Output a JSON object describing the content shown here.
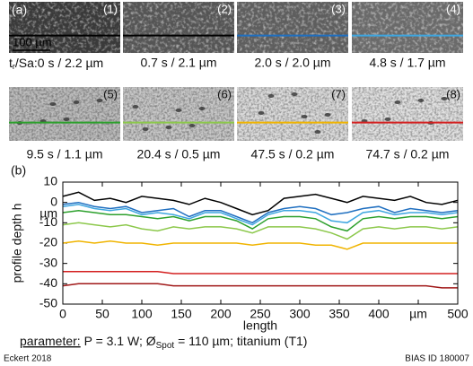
{
  "panel_label": "(a)",
  "scale_bar": "100 µm",
  "caption_key": {
    "text": "t",
    "sub": "r",
    "after": "/Sa:"
  },
  "panels": [
    {
      "number": "(1)",
      "caption": "0 s / 2.2 µm"
    },
    {
      "number": "(2)",
      "caption": "0.7 s / 2.1 µm"
    },
    {
      "number": "(3)",
      "caption": "2.0 s / 2.0 µm"
    },
    {
      "number": "(4)",
      "caption": "4.8 s / 1.7 µm"
    },
    {
      "number": "(5)",
      "caption": "9.5 s / 1.1 µm"
    },
    {
      "number": "(6)",
      "caption": "20.4 s / 0.5 µm"
    },
    {
      "number": "(7)",
      "caption": "47.5 s / 0.2 µm"
    },
    {
      "number": "(8)",
      "caption": "74.7 s / 0.2 µm"
    }
  ],
  "chart_data": {
    "type": "line",
    "panel_label": "(b)",
    "x_label": "length",
    "y_label": "profile depth h",
    "y_unit": "µm",
    "x": [
      0,
      20,
      40,
      60,
      80,
      100,
      120,
      140,
      160,
      180,
      200,
      220,
      240,
      260,
      280,
      300,
      320,
      340,
      360,
      380,
      400,
      420,
      440,
      460,
      480,
      500
    ],
    "xlim": [
      0,
      500
    ],
    "ylim": [
      -50,
      10
    ],
    "xticks": [
      0,
      50,
      100,
      150,
      200,
      250,
      300,
      350,
      400,
      {
        "value": 450,
        "label": "µm"
      },
      500
    ],
    "yticks": [
      10,
      0,
      -10,
      -20,
      -30,
      -40,
      -50
    ],
    "series": [
      {
        "color": "#000000",
        "values": [
          3,
          5,
          1,
          2,
          0,
          3,
          2,
          1,
          -1,
          2,
          0,
          -3,
          -6,
          -4,
          2,
          3,
          4,
          2,
          0,
          3,
          2,
          1,
          3,
          0,
          -1,
          1
        ]
      },
      {
        "color": "#1f6fc0",
        "values": [
          -1,
          0,
          -2,
          -3,
          -2,
          -5,
          -4,
          -3,
          -7,
          -4,
          -4,
          -7,
          -10,
          -5,
          -3,
          -2,
          -3,
          -6,
          -5,
          -3,
          -2,
          -5,
          -3,
          -4,
          -5,
          -4
        ]
      },
      {
        "color": "#3ea6e0",
        "values": [
          -2,
          -1,
          -3,
          -4,
          -3,
          -6,
          -5,
          -6,
          -8,
          -5,
          -5,
          -8,
          -11,
          -6,
          -4,
          -4,
          -5,
          -9,
          -10,
          -5,
          -4,
          -6,
          -5,
          -5,
          -6,
          -5
        ]
      },
      {
        "color": "#2ca02c",
        "values": [
          -5,
          -4,
          -5,
          -6,
          -6,
          -7,
          -8,
          -7,
          -9,
          -7,
          -7,
          -9,
          -13,
          -8,
          -7,
          -7,
          -8,
          -12,
          -14,
          -8,
          -7,
          -8,
          -7,
          -7,
          -8,
          -7
        ]
      },
      {
        "color": "#8cc84b",
        "values": [
          -11,
          -10,
          -11,
          -12,
          -11,
          -13,
          -14,
          -12,
          -13,
          -12,
          -12,
          -13,
          -15,
          -12,
          -12,
          -12,
          -13,
          -15,
          -18,
          -13,
          -12,
          -13,
          -12,
          -12,
          -13,
          -12
        ]
      },
      {
        "color": "#f0b400",
        "values": [
          -20,
          -19,
          -20,
          -19,
          -20,
          -20,
          -21,
          -20,
          -20,
          -20,
          -20,
          -20,
          -21,
          -20,
          -20,
          -20,
          -21,
          -21,
          -23,
          -20,
          -20,
          -20,
          -20,
          -20,
          -20,
          -20
        ]
      },
      {
        "color": "#d42020",
        "values": [
          -34,
          -34,
          -34,
          -34,
          -34,
          -34,
          -34,
          -35,
          -35,
          -35,
          -35,
          -35,
          -35,
          -35,
          -35,
          -35,
          -35,
          -35,
          -35,
          -35,
          -35,
          -35,
          -35,
          -35,
          -35,
          -35
        ]
      },
      {
        "color": "#a01818",
        "values": [
          -41,
          -40,
          -40,
          -40,
          -40,
          -40,
          -40,
          -41,
          -41,
          -41,
          -41,
          -41,
          -41,
          -41,
          -41,
          -41,
          -41,
          -41,
          -41,
          -41,
          -41,
          -41,
          -41,
          -41,
          -42,
          -42
        ]
      }
    ]
  },
  "parameter": {
    "label": "parameter:",
    "text1": " P = 3.1 W; Ø",
    "sub": "Spot",
    "text2": " = 110 µm; titanium (T1)"
  },
  "footer_left": "Eckert 2018",
  "footer_right": "BIAS ID 180007"
}
